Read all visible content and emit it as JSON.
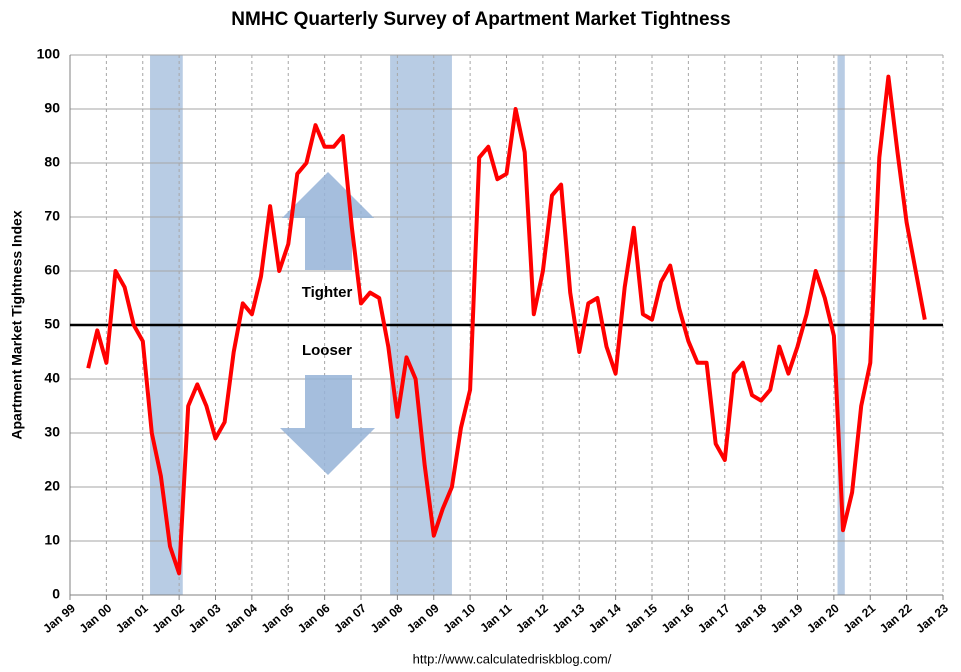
{
  "chart_data": {
    "type": "line",
    "title": "NMHC Quarterly Survey of Apartment Market Tightness",
    "y_label": "Apartment Market Tightness Index",
    "source": "http://www.calculatedriskblog.com/",
    "annotations": [
      "Tighter",
      "Looser"
    ],
    "reference_line": 50,
    "grid": true,
    "recessions": [
      [
        2001.2,
        2002.1
      ],
      [
        2007.8,
        2009.5
      ],
      [
        2020.1,
        2020.3
      ]
    ],
    "recession_color": "#b8cce4",
    "xlim": [
      1999,
      2023
    ],
    "xticks": [
      {
        "value": 1999,
        "label": "Jan 99"
      },
      {
        "value": 2000,
        "label": "Jan 00"
      },
      {
        "value": 2001,
        "label": "Jan 01"
      },
      {
        "value": 2002,
        "label": "Jan 02"
      },
      {
        "value": 2003,
        "label": "Jan 03"
      },
      {
        "value": 2004,
        "label": "Jan 04"
      },
      {
        "value": 2005,
        "label": "Jan 05"
      },
      {
        "value": 2006,
        "label": "Jan 06"
      },
      {
        "value": 2007,
        "label": "Jan 07"
      },
      {
        "value": 2008,
        "label": "Jan 08"
      },
      {
        "value": 2009,
        "label": "Jan 09"
      },
      {
        "value": 2010,
        "label": "Jan 10"
      },
      {
        "value": 2011,
        "label": "Jan 11"
      },
      {
        "value": 2012,
        "label": "Jan 12"
      },
      {
        "value": 2013,
        "label": "Jan 13"
      },
      {
        "value": 2014,
        "label": "Jan 14"
      },
      {
        "value": 2015,
        "label": "Jan 15"
      },
      {
        "value": 2016,
        "label": "Jan 16"
      },
      {
        "value": 2017,
        "label": "Jan 17"
      },
      {
        "value": 2018,
        "label": "Jan 18"
      },
      {
        "value": 2019,
        "label": "Jan 19"
      },
      {
        "value": 2020,
        "label": "Jan 20"
      },
      {
        "value": 2021,
        "label": "Jan 21"
      },
      {
        "value": 2022,
        "label": "Jan 22"
      },
      {
        "value": 2023,
        "label": "Jan 23"
      }
    ],
    "ylim": [
      0,
      100
    ],
    "yticks": [
      0,
      10,
      20,
      30,
      40,
      50,
      60,
      70,
      80,
      90,
      100
    ],
    "x": [
      1999.5,
      1999.75,
      2000,
      2000.25,
      2000.5,
      2000.75,
      2001,
      2001.25,
      2001.5,
      2001.75,
      2002,
      2002.25,
      2002.5,
      2002.75,
      2003,
      2003.25,
      2003.5,
      2003.75,
      2004,
      2004.25,
      2004.5,
      2004.75,
      2005,
      2005.25,
      2005.5,
      2005.75,
      2006,
      2006.25,
      2006.5,
      2006.75,
      2007,
      2007.25,
      2007.5,
      2007.75,
      2008,
      2008.25,
      2008.5,
      2008.75,
      2009,
      2009.25,
      2009.5,
      2009.75,
      2010,
      2010.25,
      2010.5,
      2010.75,
      2011,
      2011.25,
      2011.5,
      2011.75,
      2012,
      2012.25,
      2012.5,
      2012.75,
      2013,
      2013.25,
      2013.5,
      2013.75,
      2014,
      2014.25,
      2014.5,
      2014.75,
      2015,
      2015.25,
      2015.5,
      2015.75,
      2016,
      2016.25,
      2016.5,
      2016.75,
      2017,
      2017.25,
      2017.5,
      2017.75,
      2018,
      2018.25,
      2018.5,
      2018.75,
      2019,
      2019.25,
      2019.5,
      2019.75,
      2020,
      2020.25,
      2020.5,
      2020.75,
      2021,
      2021.25,
      2021.5,
      2021.75,
      2022,
      2022.25,
      2022.5
    ],
    "series": [
      {
        "name": "Apartment Market Tightness Index",
        "color": "#ff0000",
        "values": [
          42,
          49,
          43,
          60,
          57,
          50,
          47,
          30,
          22,
          9,
          4,
          35,
          39,
          35,
          29,
          32,
          45,
          54,
          52,
          59,
          72,
          60,
          65,
          78,
          80,
          87,
          83,
          83,
          85,
          68,
          54,
          56,
          55,
          46,
          33,
          44,
          40,
          24,
          11,
          16,
          20,
          31,
          38,
          81,
          83,
          77,
          78,
          90,
          82,
          52,
          60,
          74,
          76,
          56,
          45,
          54,
          55,
          46,
          41,
          57,
          68,
          52,
          51,
          58,
          61,
          53,
          47,
          43,
          43,
          28,
          25,
          41,
          43,
          37,
          36,
          38,
          46,
          41,
          46,
          52,
          60,
          55,
          48,
          12,
          19,
          35,
          43,
          81,
          96,
          82,
          69,
          60,
          51
        ]
      }
    ]
  }
}
